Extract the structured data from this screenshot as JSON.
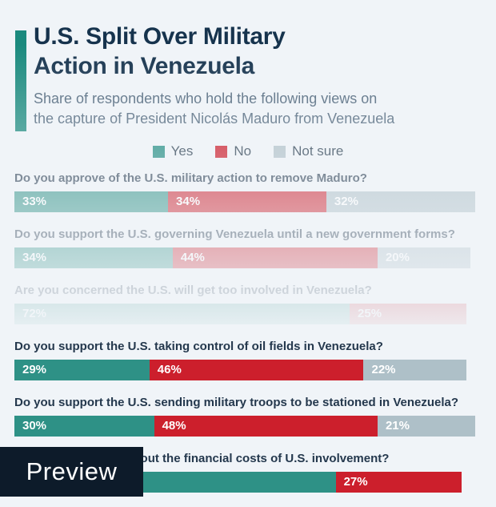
{
  "page": {
    "background_color": "#f0f4f8"
  },
  "header": {
    "accent_color": "#1b8a7e",
    "title_line1": "U.S. Split Over Military",
    "title_line2": "Action in Venezuela",
    "title_color": "#16334d",
    "subtitle_line1": "Share of respondents who hold the following views on",
    "subtitle_line2": "the capture of President Nicolás Maduro from Venezuela",
    "subtitle_color": "#4e657a"
  },
  "legend": {
    "items": [
      {
        "label": "Yes",
        "color": "#17877c"
      },
      {
        "label": "No",
        "color": "#c90f1e"
      },
      {
        "label": "Not sure",
        "color": "#aebfc7"
      }
    ]
  },
  "chart_data": {
    "type": "bar",
    "subtype": "horizontal-stacked",
    "unit": "%",
    "series_names": [
      "Yes",
      "No",
      "Not sure"
    ],
    "segment_colors": {
      "yes": "#2e9186",
      "no": "#cc1f2c",
      "not_sure": "#aec0c8"
    },
    "fade_note": "rows progressively fade toward bottom (preview watermark)",
    "rows": [
      {
        "question": "Do you approve of the U.S. military action to remove Maduro?",
        "segments": [
          {
            "name": "yes",
            "pct": 33,
            "label": "33%"
          },
          {
            "name": "no",
            "pct": 34,
            "label": "34%"
          },
          {
            "name": "not_sure",
            "pct": 32,
            "label": "32%"
          }
        ]
      },
      {
        "question": "Do you support the U.S. governing Venezuela until a new government forms?",
        "segments": [
          {
            "name": "yes",
            "pct": 34,
            "label": "34%"
          },
          {
            "name": "no",
            "pct": 44,
            "label": "44%"
          },
          {
            "name": "not_sure",
            "pct": 20,
            "label": "20%"
          }
        ]
      },
      {
        "question": "Are you concerned the U.S. will get too involved in Venezuela?",
        "segments": [
          {
            "name": "yes",
            "pct": 72,
            "label": "72%"
          },
          {
            "name": "no",
            "pct": 25,
            "label": "25%"
          }
        ]
      },
      {
        "question": "Do you support the U.S. taking control of oil fields in Venezuela?",
        "segments": [
          {
            "name": "yes",
            "pct": 29,
            "label": "29%"
          },
          {
            "name": "no",
            "pct": 46,
            "label": "46%"
          },
          {
            "name": "not_sure",
            "pct": 22,
            "label": "22%"
          }
        ]
      },
      {
        "question": "Do you support the U.S. sending military troops to be stationed in Venezuela?",
        "segments": [
          {
            "name": "yes",
            "pct": 30,
            "label": "30%"
          },
          {
            "name": "no",
            "pct": 48,
            "label": "48%"
          },
          {
            "name": "not_sure",
            "pct": 21,
            "label": "21%"
          }
        ]
      },
      {
        "question": "Are you concerned about the financial costs of U.S. involvement?",
        "segments": [
          {
            "name": "yes",
            "pct": 69,
            "label": ""
          },
          {
            "name": "no",
            "pct": 27,
            "label": "27%"
          }
        ]
      }
    ]
  },
  "preview": {
    "label": "Preview",
    "background": "#0d1b2a"
  }
}
